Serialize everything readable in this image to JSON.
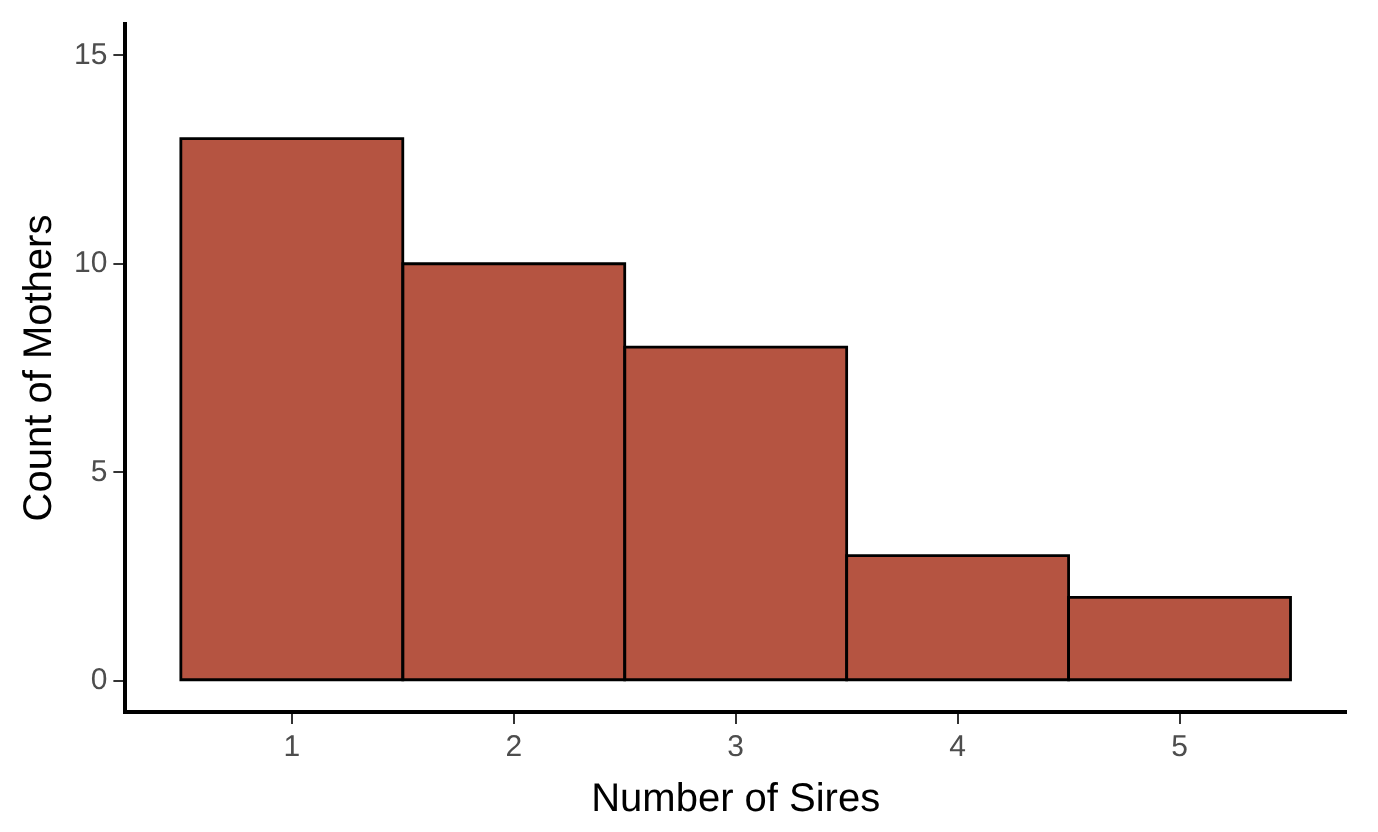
{
  "chart_data": {
    "type": "histogram",
    "xlabel": "Number of Sires",
    "ylabel": "Count of Mothers",
    "bins": [
      0.5,
      1.5,
      2.5,
      3.5,
      4.5,
      5.5
    ],
    "values": [
      13,
      10,
      8,
      3,
      2
    ],
    "color": "#b55441",
    "xlim": [
      0.25,
      5.75
    ],
    "xticks": [
      1,
      2,
      3,
      4,
      5
    ],
    "ylim": [
      -0.75,
      15.75
    ],
    "yticks": [
      0,
      5,
      10,
      15
    ],
    "grid": false,
    "legend": false
  }
}
